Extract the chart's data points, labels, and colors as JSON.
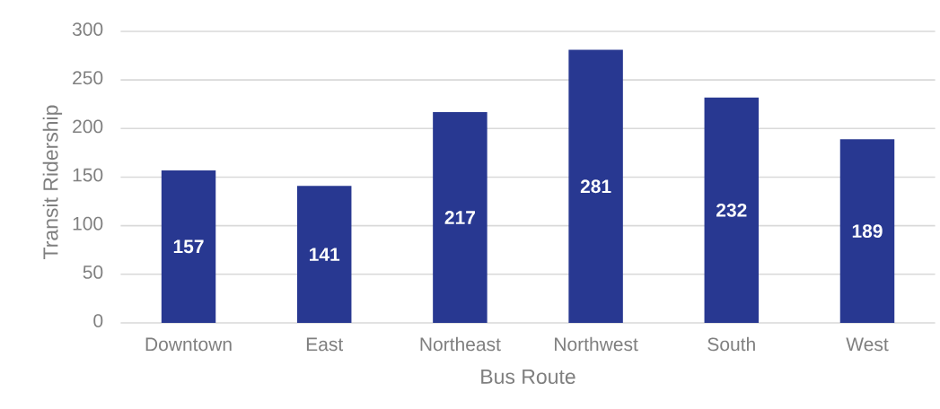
{
  "chart_data": {
    "type": "bar",
    "xlabel": "Bus Route",
    "ylabel": "Transit Ridership",
    "categories": [
      "Downtown",
      "East",
      "Northeast",
      "Northwest",
      "South",
      "West"
    ],
    "values": [
      157,
      141,
      217,
      281,
      232,
      189
    ],
    "color": "#283891",
    "ylim": [
      0,
      300
    ],
    "yticks": [
      0,
      50,
      100,
      150,
      200,
      250,
      300
    ],
    "grid": "y",
    "data_labels": true
  }
}
